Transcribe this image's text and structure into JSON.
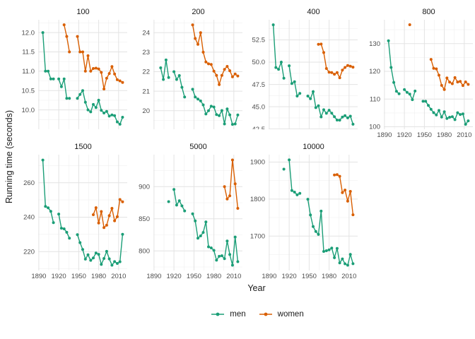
{
  "chart_data": {
    "type": "line",
    "title": "",
    "xlabel": "Year",
    "ylabel": "Running time (seconds)",
    "facet_by": "race length (m)",
    "grid": true,
    "x_domain": [
      1889,
      2023
    ],
    "x_major": [
      1890,
      1920,
      1950,
      1980,
      2010
    ],
    "x_minor": [
      1905,
      1935,
      1965,
      1995
    ],
    "x_tick_labels": [
      "1890",
      "1920",
      "1950",
      "1980",
      "2010"
    ],
    "legend": {
      "position": "bottom",
      "entries": [
        {
          "label": "men",
          "color": "#1b9e77"
        },
        {
          "label": "women",
          "color": "#d95f02"
        }
      ]
    },
    "panels": [
      {
        "title": "100",
        "ylim": [
          9.5,
          12.33
        ],
        "ytick_values": [
          10.0,
          10.5,
          11.0,
          11.5,
          12.0
        ],
        "ytick_labels": [
          "10.0",
          "10.5",
          "11.0",
          "11.5",
          "12.0"
        ],
        "yminor": [
          9.75,
          10.25,
          10.75,
          11.25,
          11.75,
          12.25
        ],
        "series": [
          {
            "name": "men",
            "years": [
              1896,
              1900,
              1904,
              1908,
              1912,
              1920,
              1924,
              1928,
              1932,
              1936,
              1948,
              1952,
              1956,
              1960,
              1964,
              1968,
              1972,
              1976,
              1980,
              1984,
              1988,
              1992,
              1996,
              2000,
              2004,
              2008,
              2012,
              2016
            ],
            "times": [
              12.0,
              11.0,
              11.0,
              10.8,
              10.8,
              10.8,
              10.6,
              10.8,
              10.3,
              10.3,
              10.3,
              10.4,
              10.5,
              10.2,
              10.0,
              9.95,
              10.14,
              10.06,
              10.25,
              9.99,
              9.92,
              9.96,
              9.84,
              9.87,
              9.85,
              9.69,
              9.63,
              9.81
            ]
          },
          {
            "name": "women",
            "years": [
              1928,
              1932,
              1936,
              1948,
              1952,
              1956,
              1960,
              1964,
              1968,
              1972,
              1976,
              1980,
              1984,
              1988,
              1992,
              1996,
              2000,
              2004,
              2008,
              2012,
              2016
            ],
            "times": [
              12.2,
              11.9,
              11.5,
              11.9,
              11.5,
              11.5,
              11.0,
              11.4,
              11.0,
              11.07,
              11.08,
              11.06,
              10.97,
              10.54,
              10.82,
              10.94,
              11.12,
              10.93,
              10.78,
              10.75,
              10.71
            ]
          }
        ]
      },
      {
        "title": "200",
        "ylim": [
          19.05,
          24.66
        ],
        "ytick_values": [
          20,
          21,
          22,
          23,
          24
        ],
        "ytick_labels": [
          "20",
          "21",
          "22",
          "23",
          "24"
        ],
        "yminor": [
          19.5,
          20.5,
          21.5,
          22.5,
          23.5,
          24.5
        ],
        "series": [
          {
            "name": "men",
            "years": [
              1900,
              1904,
              1908,
              1912,
              1920,
              1924,
              1928,
              1932,
              1936,
              1948,
              1952,
              1956,
              1960,
              1964,
              1968,
              1972,
              1976,
              1980,
              1984,
              1988,
              1992,
              1996,
              2000,
              2004,
              2008,
              2012,
              2016
            ],
            "times": [
              22.2,
              21.6,
              22.6,
              21.7,
              22.0,
              21.6,
              21.8,
              21.2,
              20.7,
              21.1,
              20.7,
              20.6,
              20.5,
              20.3,
              19.83,
              20.0,
              20.23,
              20.19,
              19.8,
              19.75,
              20.01,
              19.32,
              20.09,
              19.79,
              19.3,
              19.32,
              19.78
            ]
          },
          {
            "name": "women",
            "years": [
              1948,
              1952,
              1956,
              1960,
              1964,
              1968,
              1972,
              1976,
              1980,
              1984,
              1988,
              1992,
              1996,
              2000,
              2004,
              2008,
              2012,
              2016
            ],
            "times": [
              24.4,
              23.7,
              23.4,
              24.0,
              23.0,
              22.5,
              22.4,
              22.37,
              22.03,
              21.81,
              21.34,
              21.81,
              22.12,
              22.27,
              22.05,
              21.74,
              21.88,
              21.78
            ]
          }
        ]
      },
      {
        "title": "400",
        "ylim": [
          42.47,
          54.76
        ],
        "ytick_values": [
          42.5,
          45.0,
          47.5,
          50.0,
          52.5
        ],
        "ytick_labels": [
          "42.5",
          "45.0",
          "47.5",
          "50.0",
          "52.5"
        ],
        "yminor": [
          43.75,
          46.25,
          48.75,
          51.25,
          53.75
        ],
        "series": [
          {
            "name": "men",
            "years": [
              1896,
              1900,
              1904,
              1908,
              1912,
              1920,
              1924,
              1928,
              1932,
              1936,
              1948,
              1952,
              1956,
              1960,
              1964,
              1968,
              1972,
              1976,
              1980,
              1984,
              1988,
              1992,
              1996,
              2000,
              2004,
              2008,
              2012,
              2016
            ],
            "times": [
              54.2,
              49.4,
              49.2,
              50.0,
              48.2,
              49.6,
              47.6,
              47.8,
              46.2,
              46.5,
              46.2,
              45.9,
              46.7,
              44.9,
              45.1,
              43.86,
              44.66,
              44.26,
              44.6,
              44.27,
              43.87,
              43.5,
              43.49,
              43.84,
              44.0,
              43.75,
              43.94,
              43.03
            ]
          },
          {
            "name": "women",
            "years": [
              1964,
              1968,
              1972,
              1976,
              1980,
              1984,
              1988,
              1992,
              1996,
              2000,
              2004,
              2008,
              2012,
              2016
            ],
            "times": [
              52.0,
              52.03,
              51.08,
              49.29,
              48.88,
              48.83,
              48.65,
              48.83,
              48.25,
              49.11,
              49.41,
              49.62,
              49.55,
              49.44
            ]
          }
        ]
      },
      {
        "title": "800",
        "ylim": [
          99.12,
          138.59
        ],
        "ytick_values": [
          100,
          110,
          120,
          130
        ],
        "ytick_labels": [
          "100",
          "110",
          "120",
          "130"
        ],
        "yminor": [
          105,
          115,
          125,
          135
        ],
        "series": [
          {
            "name": "men",
            "years": [
              1896,
              1900,
              1904,
              1908,
              1912,
              1920,
              1924,
              1928,
              1932,
              1936,
              1948,
              1952,
              1956,
              1960,
              1964,
              1968,
              1972,
              1976,
              1980,
              1984,
              1988,
              1992,
              1996,
              2000,
              2004,
              2008,
              2012,
              2016
            ],
            "times": [
              131.0,
              121.4,
              116.0,
              112.8,
              111.9,
              113.4,
              112.4,
              111.8,
              109.8,
              112.9,
              109.2,
              109.2,
              107.7,
              106.3,
              105.1,
              104.3,
              105.9,
              103.5,
              105.4,
              103.0,
              103.45,
              103.66,
              102.58,
              105.08,
              104.45,
              104.65,
              100.91,
              102.15
            ]
          },
          {
            "name": "women",
            "years": [
              1928,
              1960,
              1964,
              1968,
              1972,
              1976,
              1980,
              1984,
              1988,
              1992,
              1996,
              2000,
              2004,
              2008,
              2012,
              2016
            ],
            "times": [
              136.8,
              124.3,
              121.1,
              120.9,
              118.6,
              114.94,
              113.42,
              117.6,
              116.1,
              115.54,
              117.73,
              116.15,
              116.38,
              114.87,
              116.19,
              115.28
            ]
          }
        ]
      },
      {
        "title": "1500",
        "ylim": [
          209.0,
          276.3
        ],
        "ytick_values": [
          220,
          240,
          260
        ],
        "ytick_labels": [
          "220",
          "240",
          "260"
        ],
        "yminor": [
          210,
          230,
          250,
          270
        ],
        "series": [
          {
            "name": "men",
            "years": [
              1896,
              1900,
              1904,
              1908,
              1912,
              1920,
              1924,
              1928,
              1932,
              1936,
              1948,
              1952,
              1956,
              1960,
              1964,
              1968,
              1972,
              1976,
              1980,
              1984,
              1988,
              1992,
              1996,
              2000,
              2004,
              2008,
              2012,
              2016
            ],
            "times": [
              273.2,
              246.2,
              245.4,
              243.4,
              236.8,
              241.8,
              233.6,
              233.2,
              231.2,
              227.8,
              229.8,
              225.2,
              221.2,
              215.6,
              218.1,
              214.9,
              216.3,
              219.17,
              218.4,
              212.53,
              215.96,
              220.12,
              215.78,
              212.07,
              214.18,
              213.11,
              214.08,
              230.0
            ]
          },
          {
            "name": "women",
            "years": [
              1972,
              1976,
              1980,
              1984,
              1988,
              1992,
              1996,
              2000,
              2004,
              2008,
              2012,
              2016
            ],
            "times": [
              241.4,
              245.48,
              236.56,
              243.25,
              233.96,
              235.3,
              240.83,
              245.1,
              237.9,
              240.23,
              250.23,
              248.92
            ]
          }
        ]
      },
      {
        "title": "5000",
        "ylim": [
          769.6,
          949.6
        ],
        "ytick_values": [
          800,
          850,
          900
        ],
        "ytick_labels": [
          "800",
          "850",
          "900"
        ],
        "yminor": [
          775,
          825,
          875,
          925
        ],
        "series": [
          {
            "name": "men",
            "years": [
              1912,
              1920,
              1924,
              1928,
              1932,
              1936,
              1948,
              1952,
              1956,
              1960,
              1964,
              1968,
              1972,
              1976,
              1980,
              1984,
              1988,
              1992,
              1996,
              2000,
              2004,
              2008,
              2012,
              2016
            ],
            "times": [
              876.6,
              895.6,
              871.2,
              878.0,
              870.0,
              862.2,
              857.6,
              846.6,
              819.86,
              823.4,
              828.8,
              845.0,
              806.4,
              804.76,
              800.91,
              785.59,
              791.7,
              792.52,
              787.96,
              815.49,
              794.39,
              777.82,
              821.66,
              783.3
            ]
          },
          {
            "name": "women",
            "years": [
              1996,
              2000,
              2004,
              2008,
              2012,
              2016
            ],
            "times": [
              899.88,
              880.79,
              885.65,
              941.4,
              904.25,
              866.17
            ]
          }
        ]
      },
      {
        "title": "10000",
        "ylim": [
          1606.9,
          1920.0
        ],
        "ytick_values": [
          1700,
          1800,
          1900
        ],
        "ytick_labels": [
          "1700",
          "1800",
          "1900"
        ],
        "yminor": [
          1650,
          1750,
          1850
        ],
        "series": [
          {
            "name": "men",
            "years": [
              1912,
              1920,
              1924,
              1928,
              1932,
              1936,
              1948,
              1952,
              1956,
              1960,
              1964,
              1968,
              1972,
              1976,
              1980,
              1984,
              1988,
              1992,
              1996,
              2000,
              2004,
              2008,
              2012,
              2016
            ],
            "times": [
              1880.8,
              1905.8,
              1823.2,
              1818.8,
              1811.4,
              1815.4,
              1799.6,
              1757.0,
              1725.6,
              1712.2,
              1704.4,
              1767.4,
              1658.4,
              1660.38,
              1662.7,
              1667.54,
              1641.46,
              1666.7,
              1627.34,
              1638.2,
              1625.1,
              1621.17,
              1650.42,
              1625.17
            ]
          },
          {
            "name": "women",
            "years": [
              1988,
              1992,
              1996,
              2000,
              2004,
              2008,
              2012,
              2016
            ],
            "times": [
              1865.21,
              1866.02,
              1861.63,
              1817.49,
              1824.36,
              1794.66,
              1820.75,
              1757.45
            ]
          }
        ]
      }
    ]
  }
}
